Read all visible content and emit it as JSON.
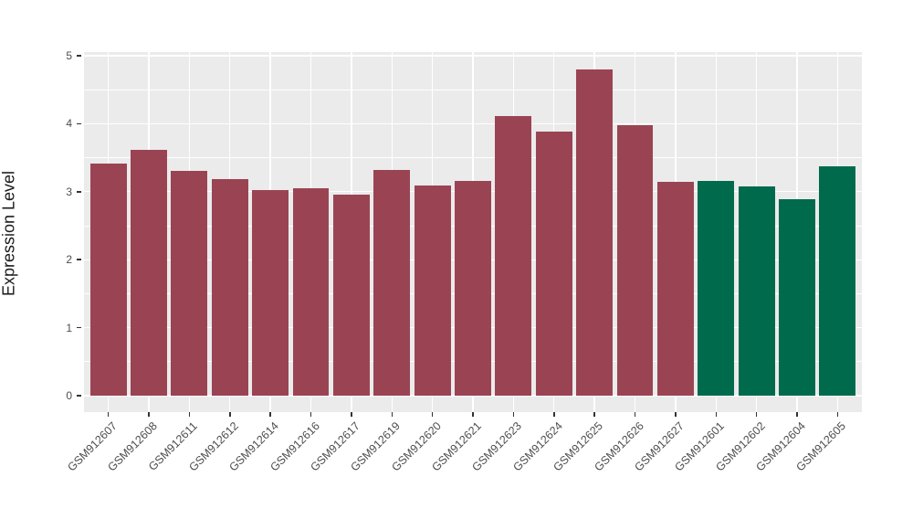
{
  "chart_data": {
    "type": "bar",
    "title": "",
    "xlabel": "",
    "ylabel": "Expression Level",
    "ylim": [
      0,
      5
    ],
    "yticks": [
      0,
      1,
      2,
      3,
      4,
      5
    ],
    "yticks_minor": [
      0.5,
      1.5,
      2.5,
      3.5,
      4.5
    ],
    "grid": "on",
    "legend": "none",
    "categories": [
      "GSM912607",
      "GSM912608",
      "GSM912611",
      "GSM912612",
      "GSM912614",
      "GSM912616",
      "GSM912617",
      "GSM912619",
      "GSM912620",
      "GSM912621",
      "GSM912623",
      "GSM912624",
      "GSM912625",
      "GSM912626",
      "GSM912627",
      "GSM912601",
      "GSM912602",
      "GSM912604",
      "GSM912605"
    ],
    "values": [
      3.41,
      3.61,
      3.3,
      3.18,
      3.03,
      3.05,
      2.96,
      3.32,
      3.09,
      3.16,
      4.11,
      3.88,
      4.8,
      3.98,
      3.15,
      3.16,
      3.08,
      2.89,
      3.37
    ],
    "bar_colors": [
      "#9A4453",
      "#9A4453",
      "#9A4453",
      "#9A4453",
      "#9A4453",
      "#9A4453",
      "#9A4453",
      "#9A4453",
      "#9A4453",
      "#9A4453",
      "#9A4453",
      "#9A4453",
      "#9A4453",
      "#9A4453",
      "#9A4453",
      "#006B4C",
      "#006B4C",
      "#006B4C",
      "#006B4C"
    ],
    "groups": [
      {
        "name": "red-group",
        "color": "#9A4453",
        "count": 15
      },
      {
        "name": "green-group",
        "color": "#006B4C",
        "count": 4
      }
    ],
    "colors": {
      "panel_background": "#EBEBEB",
      "grid": "#FFFFFF",
      "axis_text": "#4D4D4D",
      "axis_title": "#1A1A1A",
      "tick": "#333333"
    }
  }
}
